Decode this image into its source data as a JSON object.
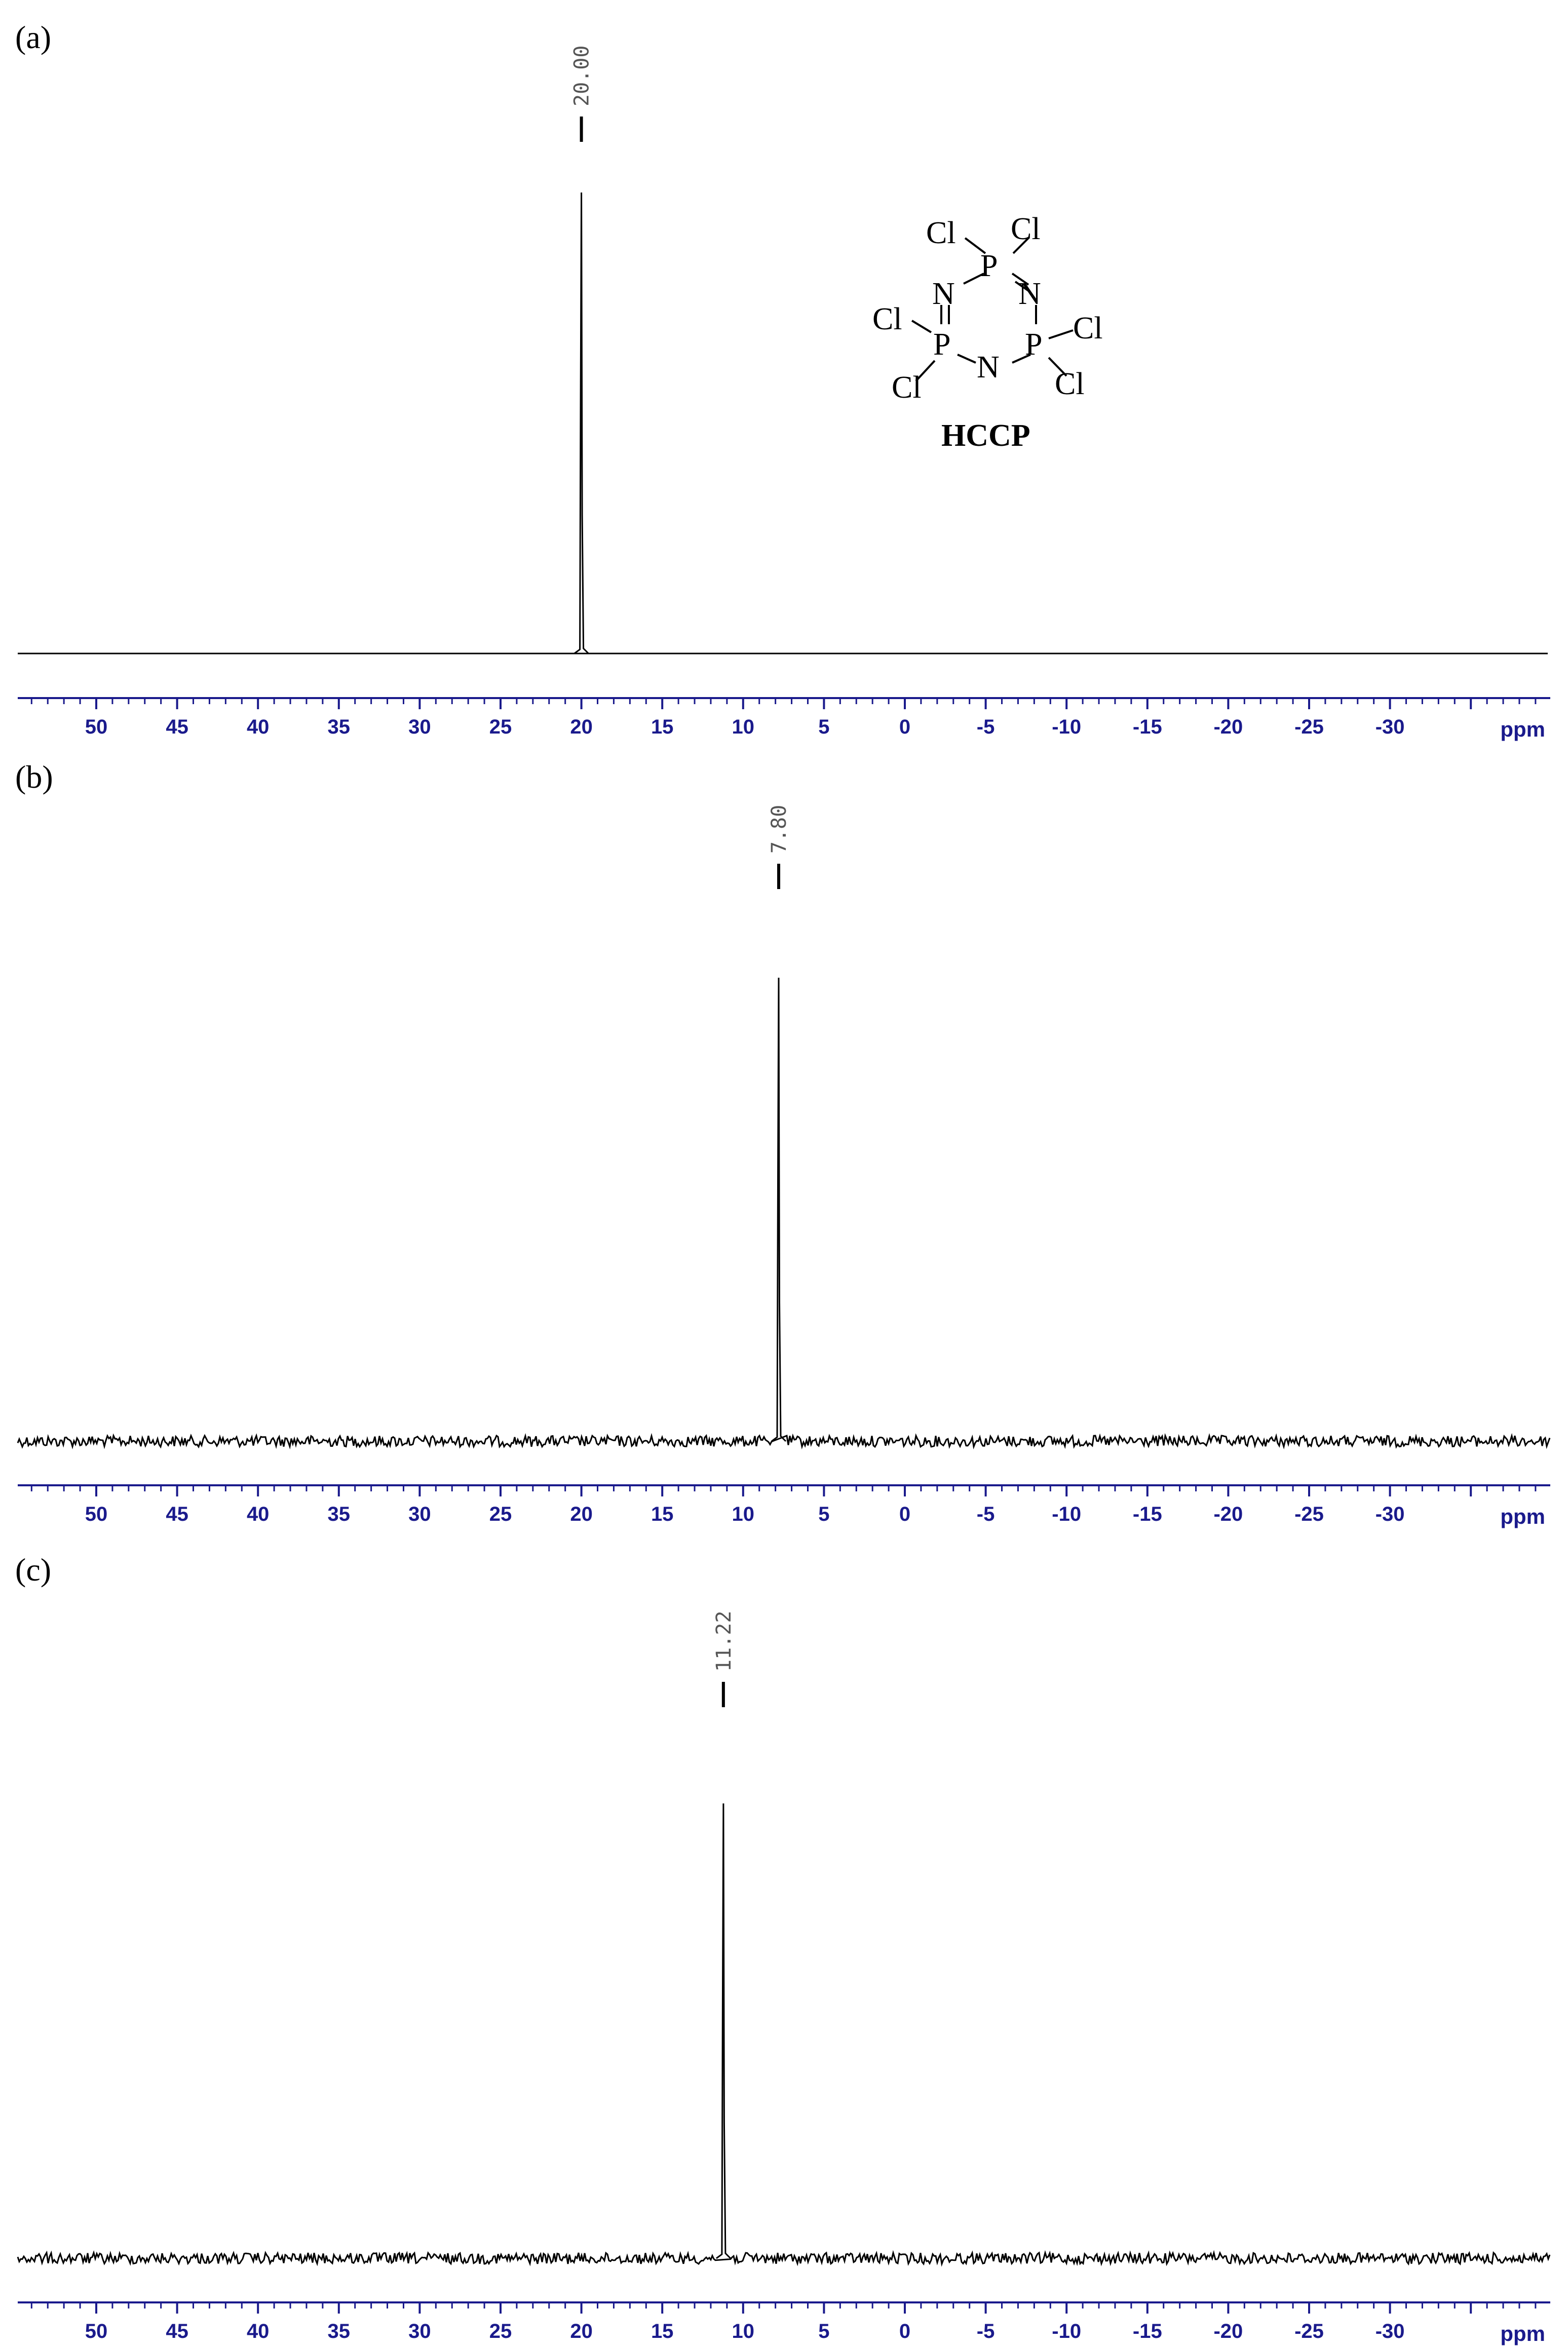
{
  "colors": {
    "axis": "#1a1a8c",
    "trace": "#000000"
  },
  "x_unit": "ppm",
  "chart_data": [
    {
      "type": "line",
      "panel_label": "(a)",
      "title": "",
      "xlabel": "ppm",
      "ylabel": "",
      "xlim": [
        55,
        -40
      ],
      "x_reversed": true,
      "ticks": [
        50,
        45,
        40,
        35,
        30,
        25,
        20,
        15,
        10,
        5,
        0,
        -5,
        -10,
        -15,
        -20,
        -25,
        -30
      ],
      "peaks": [
        {
          "shift": 20.0,
          "label": "20.00",
          "height": 1.0
        }
      ],
      "noise": "none",
      "grid": false
    },
    {
      "type": "line",
      "panel_label": "(b)",
      "title": "",
      "xlabel": "ppm",
      "ylabel": "",
      "xlim": [
        55,
        -40
      ],
      "x_reversed": true,
      "ticks": [
        50,
        45,
        40,
        35,
        30,
        25,
        20,
        15,
        10,
        5,
        0,
        -5,
        -10,
        -15,
        -20,
        -25,
        -30
      ],
      "peaks": [
        {
          "shift": 7.8,
          "label": "7.80",
          "height": 1.0
        }
      ],
      "noise": "medium",
      "grid": false
    },
    {
      "type": "line",
      "panel_label": "(c)",
      "title": "",
      "xlabel": "ppm",
      "ylabel": "",
      "xlim": [
        55,
        -40
      ],
      "x_reversed": true,
      "ticks": [
        50,
        45,
        40,
        35,
        30,
        25,
        20,
        15,
        10,
        5,
        0,
        -5,
        -10,
        -15,
        -20,
        -25,
        -30
      ],
      "peaks": [
        {
          "shift": 11.22,
          "label": "11.22",
          "height": 1.0
        }
      ],
      "noise": "medium",
      "grid": false
    }
  ],
  "molecule": {
    "name": "HCCP",
    "atoms": {
      "cl_top_left": "Cl",
      "cl_top_right": "Cl",
      "p_top": "P",
      "n_left": "N",
      "n_right": "N",
      "cl_mid_left": "Cl",
      "p_left": "P",
      "n_bottom": "N",
      "p_right": "P",
      "cl_mid_right": "Cl",
      "cl_bottom_left": "Cl",
      "cl_bottom_right": "Cl"
    }
  }
}
